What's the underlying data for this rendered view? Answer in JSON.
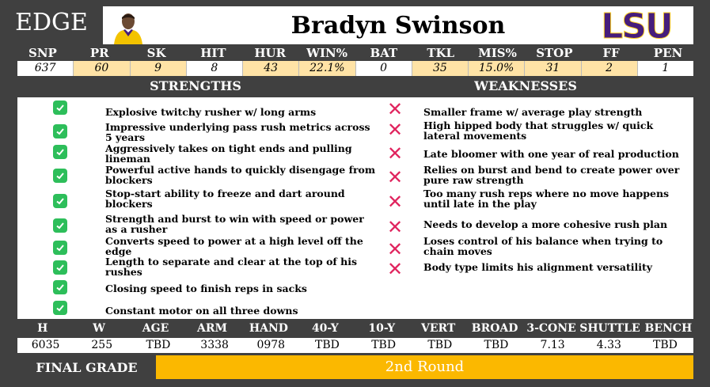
{
  "position": "EDGE",
  "player": {
    "name": "Bradyn Swinson",
    "headshot": "player-headshot",
    "logo_text": "LSU",
    "logo_color": "#461D7C"
  },
  "stats": {
    "labels": [
      "SNP",
      "PR",
      "SK",
      "HIT",
      "HUR",
      "WIN%",
      "BAT",
      "TKL",
      "MIS%",
      "STOP",
      "FF",
      "PEN"
    ],
    "values": [
      "637",
      "60",
      "9",
      "8",
      "43",
      "22.1%",
      "0",
      "35",
      "15.0%",
      "31",
      "2",
      "1"
    ],
    "highlighted": [
      false,
      true,
      true,
      false,
      true,
      true,
      false,
      true,
      true,
      true,
      true,
      false
    ],
    "highlight_color": "#FFE3A6"
  },
  "strengths": {
    "title": "STRENGTHS",
    "icon": "check-icon",
    "items": [
      "Explosive twitchy rusher w/ long arms",
      "Impressive underlying pass rush metrics across 5 years",
      "Aggressively takes on tight ends and pulling lineman",
      "Powerful active hands to quickly disengage from blockers",
      "Stop-start ability to freeze and dart around blockers",
      "Strength and burst to win with speed or power as a rusher",
      "Converts speed to power at a high level off the edge",
      "Length to separate and clear at the top of his rushes",
      "Closing speed to finish reps in sacks",
      "Constant motor on all three downs"
    ]
  },
  "weaknesses": {
    "title": "WEAKNESSES",
    "icon": "x-icon",
    "items": [
      "Smaller frame w/ average play strength",
      "High hipped body that struggles w/ quick lateral movements",
      "Late bloomer with one year of real production",
      "Relies on burst and bend to create power over pure raw strength",
      "Too many rush reps where no move happens until late in the play",
      "Needs to develop a more cohesive rush plan",
      "Loses control of his balance when trying to chain moves",
      "Body type limits his alignment versatility"
    ]
  },
  "measurables": {
    "labels": [
      "H",
      "W",
      "AGE",
      "ARM",
      "HAND",
      "40-Y",
      "10-Y",
      "VERT",
      "BROAD",
      "3-CONE",
      "SHUTTLE",
      "BENCH"
    ],
    "values": [
      "6035",
      "255",
      "TBD",
      "3338",
      "0978",
      "TBD",
      "TBD",
      "TBD",
      "TBD",
      "7.13",
      "4.33",
      "TBD"
    ]
  },
  "final_grade": {
    "label": "FINAL GRADE",
    "value": "2nd Round",
    "color": "#FBB800"
  }
}
